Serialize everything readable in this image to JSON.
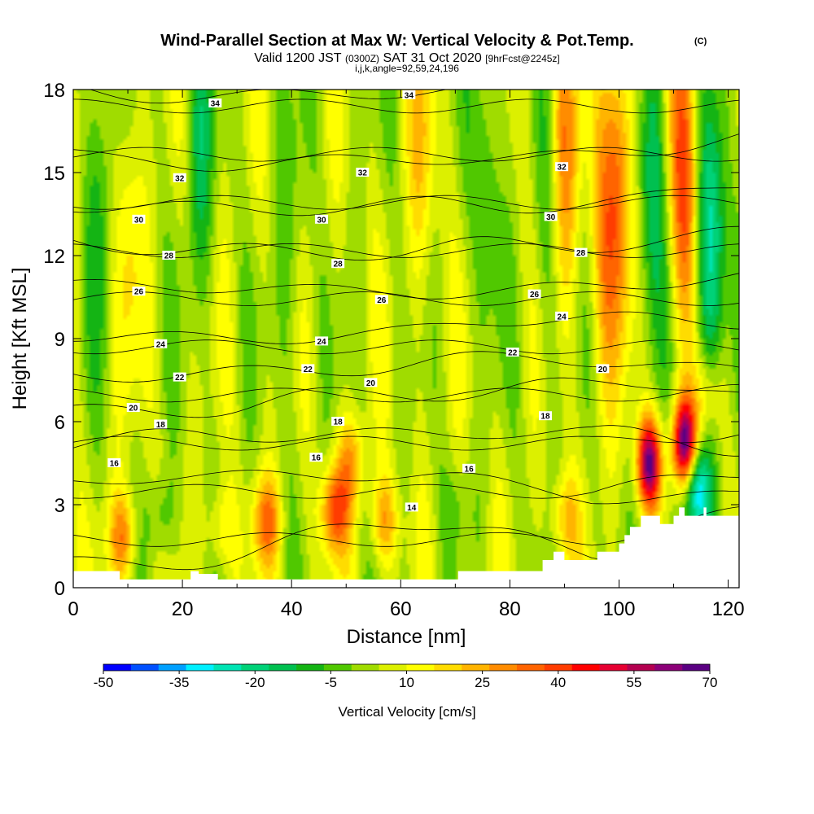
{
  "title": {
    "main": "Wind-Parallel Section at Max W: Vertical Velocity & Pot.Temp.",
    "copyright": "(C)",
    "valid_pre": "Valid 1200 JST",
    "valid_utc": "(0300Z)",
    "valid_date": "SAT 31 Oct 2020",
    "forecast": "[9hrFcst@2245z]",
    "indices": "i,j,k,angle=92,59,24,196"
  },
  "chart_data": {
    "type": "heatmap",
    "xlabel": "Distance [nm]",
    "ylabel": "Height [Kft MSL]",
    "xlim": [
      0,
      122
    ],
    "ylim": [
      0,
      18
    ],
    "xticks": [
      0,
      20,
      40,
      60,
      80,
      100,
      120
    ],
    "yticks": [
      0,
      3,
      6,
      9,
      12,
      15,
      18
    ],
    "colorbar": {
      "label": "Vertical Velocity [cm/s]",
      "range": [
        -50,
        70
      ],
      "step": 5,
      "tick_values": [
        -50,
        -35,
        -20,
        -5,
        10,
        25,
        40,
        55,
        70
      ],
      "colors": [
        "#0000ff",
        "#0050ff",
        "#00a0ff",
        "#00f0ff",
        "#00e4b4",
        "#00d278",
        "#00c050",
        "#14b414",
        "#50c800",
        "#a0dc00",
        "#dcf000",
        "#ffff00",
        "#ffdc00",
        "#ffb400",
        "#ff8c00",
        "#ff6400",
        "#ff3c00",
        "#ff0000",
        "#e60032",
        "#b40050",
        "#8c0078",
        "#5a0082"
      ]
    },
    "background_field": {
      "name": "Vertical Velocity [cm/s]",
      "x_range": [
        0,
        122
      ],
      "z_range": [
        0,
        18
      ],
      "base_value": 0,
      "features": [
        {
          "x": 9,
          "z": 1.8,
          "value": 24
        },
        {
          "x": 10,
          "z": 13,
          "value": 12
        },
        {
          "x": 27,
          "z": 2.0,
          "value": 13
        },
        {
          "x": 35.5,
          "z": 2.4,
          "value": 24
        },
        {
          "x": 48,
          "z": 2.8,
          "value": 30
        },
        {
          "x": 51,
          "z": 4.6,
          "value": 18
        },
        {
          "x": 57,
          "z": 2.4,
          "value": 20
        },
        {
          "x": 64,
          "z": 16,
          "value": 13
        },
        {
          "x": 90,
          "z": 16,
          "value": 22
        },
        {
          "x": 90,
          "z": 2.5,
          "value": 16
        },
        {
          "x": 97,
          "z": 12,
          "value": 16
        },
        {
          "x": 100,
          "z": 15,
          "value": 28
        },
        {
          "x": 105.5,
          "z": 4.5,
          "value": 55
        },
        {
          "x": 112,
          "z": 5.2,
          "value": 58
        },
        {
          "x": 112,
          "z": 15,
          "value": 32
        },
        {
          "x": 116,
          "z": 7.0,
          "value": 14
        },
        {
          "x": 5,
          "z": 15,
          "value": -13
        },
        {
          "x": 23,
          "z": 16,
          "value": -15
        },
        {
          "x": 16,
          "z": 2.5,
          "value": -10
        },
        {
          "x": 40,
          "z": 12,
          "value": -8
        },
        {
          "x": 76,
          "z": 15,
          "value": -12
        },
        {
          "x": 87,
          "z": 12,
          "value": -8
        },
        {
          "x": 106,
          "z": 15,
          "value": -20
        },
        {
          "x": 117,
          "z": 12,
          "value": -30
        },
        {
          "x": 114,
          "z": 3.5,
          "value": -35
        },
        {
          "x": 70,
          "z": 3,
          "value": -6
        }
      ]
    },
    "contours": {
      "name": "Potential Temperature",
      "levels": [
        14,
        16,
        18,
        20,
        22,
        24,
        26,
        28,
        30,
        32,
        34
      ],
      "spacing": 2,
      "labels": [
        {
          "x": 62,
          "z": 2.9,
          "value": "14"
        },
        {
          "x": 7.5,
          "z": 4.5,
          "value": "16"
        },
        {
          "x": 44.5,
          "z": 4.7,
          "value": "16"
        },
        {
          "x": 72.5,
          "z": 4.3,
          "value": "16"
        },
        {
          "x": 16,
          "z": 5.9,
          "value": "18"
        },
        {
          "x": 48.5,
          "z": 6.0,
          "value": "18"
        },
        {
          "x": 86.5,
          "z": 6.2,
          "value": "18"
        },
        {
          "x": 11,
          "z": 6.5,
          "value": "20"
        },
        {
          "x": 54.5,
          "z": 7.4,
          "value": "20"
        },
        {
          "x": 97,
          "z": 7.9,
          "value": "20"
        },
        {
          "x": 19.5,
          "z": 7.6,
          "value": "22"
        },
        {
          "x": 43,
          "z": 7.9,
          "value": "22"
        },
        {
          "x": 80.5,
          "z": 8.5,
          "value": "22"
        },
        {
          "x": 16,
          "z": 8.8,
          "value": "24"
        },
        {
          "x": 45.5,
          "z": 8.9,
          "value": "24"
        },
        {
          "x": 89.5,
          "z": 9.8,
          "value": "24"
        },
        {
          "x": 12,
          "z": 10.7,
          "value": "26"
        },
        {
          "x": 56.5,
          "z": 10.4,
          "value": "26"
        },
        {
          "x": 84.5,
          "z": 10.6,
          "value": "26"
        },
        {
          "x": 17.5,
          "z": 12.0,
          "value": "28"
        },
        {
          "x": 48.5,
          "z": 11.7,
          "value": "28"
        },
        {
          "x": 93,
          "z": 12.1,
          "value": "28"
        },
        {
          "x": 12,
          "z": 13.3,
          "value": "30"
        },
        {
          "x": 45.5,
          "z": 13.3,
          "value": "30"
        },
        {
          "x": 87.5,
          "z": 13.4,
          "value": "30"
        },
        {
          "x": 19.5,
          "z": 14.8,
          "value": "32"
        },
        {
          "x": 53,
          "z": 15.0,
          "value": "32"
        },
        {
          "x": 89.5,
          "z": 15.2,
          "value": "32"
        },
        {
          "x": 26,
          "z": 17.5,
          "value": "34"
        },
        {
          "x": 61.5,
          "z": 17.8,
          "value": "34"
        }
      ]
    },
    "terrain": {
      "name": "terrain",
      "x": [
        0,
        8.5,
        8.5,
        21.5,
        21.5,
        23,
        23,
        26.5,
        26.5,
        70.5,
        70.5,
        86,
        86,
        88,
        88,
        90,
        90,
        96,
        96,
        100,
        100,
        101,
        101,
        102,
        102,
        104,
        104,
        107.5,
        107.5,
        110,
        110,
        111,
        111,
        112,
        112,
        115.5,
        115.5,
        116,
        116,
        119.5,
        119.5,
        122
      ],
      "z": [
        0.6,
        0.6,
        0.3,
        0.3,
        0.6,
        0.6,
        0.5,
        0.5,
        0.3,
        0.3,
        0.6,
        0.6,
        1.0,
        1.0,
        1.3,
        1.3,
        1.0,
        1.0,
        1.3,
        1.3,
        1.6,
        1.6,
        1.9,
        1.9,
        2.2,
        2.2,
        2.6,
        2.6,
        2.3,
        2.3,
        2.6,
        2.6,
        2.9,
        2.9,
        2.6,
        2.6,
        2.9,
        2.9,
        2.6,
        2.6,
        2.6,
        2.6
      ]
    }
  }
}
